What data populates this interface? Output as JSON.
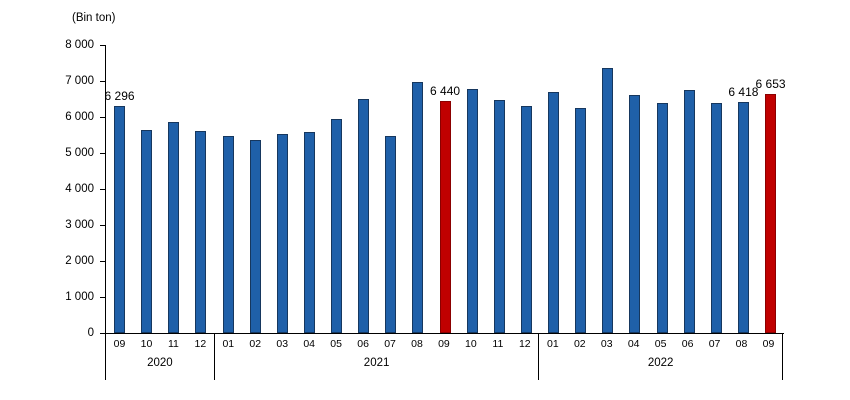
{
  "chart_data": {
    "type": "bar",
    "title": "",
    "unit_label": "(Bin ton)",
    "xlabel": "",
    "ylabel": "(Bin ton)",
    "ylim": [
      0,
      8000
    ],
    "ytick_step": 1000,
    "yticks": [
      "8 000",
      "7 000",
      "6 000",
      "5 000",
      "4 000",
      "3 000",
      "2 000",
      "1 000",
      "0"
    ],
    "grid": false,
    "legend": "none",
    "colors": {
      "bar": "#1F60A9",
      "bar_border": "#16375E",
      "highlight": "#C00000",
      "highlight_border": "#8B0000",
      "axis": "#000000"
    },
    "groups": [
      {
        "year": "2020",
        "bars": [
          {
            "month": "09",
            "value": 6296,
            "label": "6 296",
            "highlight": false
          },
          {
            "month": "10",
            "value": 5650,
            "label": null,
            "highlight": false
          },
          {
            "month": "11",
            "value": 5860,
            "label": null,
            "highlight": false
          },
          {
            "month": "12",
            "value": 5620,
            "label": null,
            "highlight": false
          }
        ]
      },
      {
        "year": "2021",
        "bars": [
          {
            "month": "01",
            "value": 5480,
            "label": null,
            "highlight": false
          },
          {
            "month": "02",
            "value": 5350,
            "label": null,
            "highlight": false
          },
          {
            "month": "03",
            "value": 5520,
            "label": null,
            "highlight": false
          },
          {
            "month": "04",
            "value": 5570,
            "label": null,
            "highlight": false
          },
          {
            "month": "05",
            "value": 5950,
            "label": null,
            "highlight": false
          },
          {
            "month": "06",
            "value": 6510,
            "label": null,
            "highlight": false
          },
          {
            "month": "07",
            "value": 5480,
            "label": null,
            "highlight": false
          },
          {
            "month": "08",
            "value": 6960,
            "label": null,
            "highlight": false
          },
          {
            "month": "09",
            "value": 6440,
            "label": "6 440",
            "highlight": true
          },
          {
            "month": "10",
            "value": 6780,
            "label": null,
            "highlight": false
          },
          {
            "month": "11",
            "value": 6470,
            "label": null,
            "highlight": false
          },
          {
            "month": "12",
            "value": 6310,
            "label": null,
            "highlight": false
          }
        ]
      },
      {
        "year": "2022",
        "bars": [
          {
            "month": "01",
            "value": 6700,
            "label": null,
            "highlight": false
          },
          {
            "month": "02",
            "value": 6250,
            "label": null,
            "highlight": false
          },
          {
            "month": "03",
            "value": 7360,
            "label": null,
            "highlight": false
          },
          {
            "month": "04",
            "value": 6620,
            "label": null,
            "highlight": false
          },
          {
            "month": "05",
            "value": 6400,
            "label": null,
            "highlight": false
          },
          {
            "month": "06",
            "value": 6760,
            "label": null,
            "highlight": false
          },
          {
            "month": "07",
            "value": 6390,
            "label": null,
            "highlight": false
          },
          {
            "month": "08",
            "value": 6418,
            "label": "6 418",
            "highlight": false
          },
          {
            "month": "09",
            "value": 6653,
            "label": "6 653",
            "highlight": true
          }
        ]
      }
    ]
  }
}
